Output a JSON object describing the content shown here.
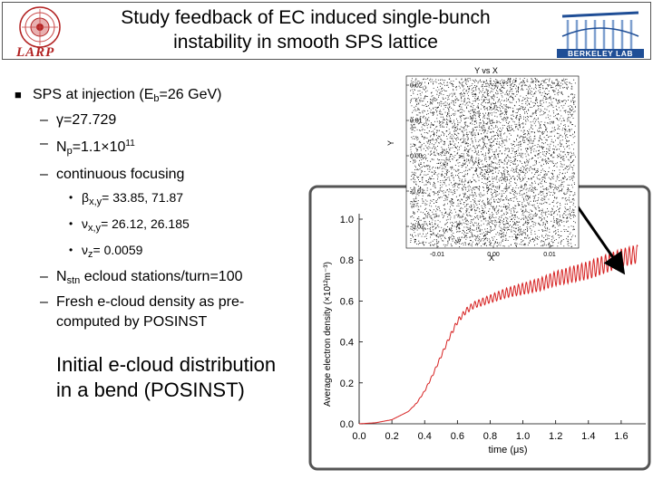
{
  "header": {
    "title_line1": "Study feedback of EC induced single-bunch",
    "title_line2": "instability in smooth SPS lattice",
    "larp_logo_text": "LARP",
    "berkeley_logo_text": "BERKELEY LAB"
  },
  "bullets": {
    "main": {
      "text": "SPS at injection (E",
      "sub": "b",
      "after": "=26 GeV)"
    },
    "gamma": {
      "sym": "γ",
      "text": "=27.729"
    },
    "np": {
      "text": "N",
      "sub": "p",
      "mid": "=1.1",
      "times": "×",
      "base": "10",
      "sup": "11"
    },
    "continuous": "continuous focusing",
    "beta": {
      "sym": "β",
      "sub": "x,y",
      "text": "= 33.85, 71.87"
    },
    "nu": {
      "sym": "ν",
      "sub": "x,y",
      "text": "= 26.12, 26.185"
    },
    "nuz": {
      "sym": "ν",
      "sub": "z",
      "text": "= 0.0059"
    },
    "nstn": {
      "text": "N",
      "sub": "stn",
      "after": " ecloud stations/turn=100"
    },
    "fresh1": "Fresh e-cloud density as pre-",
    "fresh2": "computed by POSINST"
  },
  "caption": {
    "line1": "Initial e-cloud distribution",
    "line2": "in a bend (POSINST)"
  },
  "scatter_plot": {
    "title": "Y vs X",
    "xlabel": "X",
    "ylabel": "Y",
    "xticks": [
      "-0.01",
      "0.00",
      "0.01"
    ],
    "yticks": [
      "0.02",
      "0.01",
      "0.00",
      "-0.01",
      "-0.02"
    ]
  },
  "chart_data": {
    "type": "line",
    "title": "",
    "xlabel": "time (μs)",
    "ylabel": "Average electron density (×10¹²m⁻³)",
    "xlim": [
      0.0,
      1.75
    ],
    "ylim": [
      0.0,
      1.0
    ],
    "xticks": [
      "0.0",
      "0.2",
      "0.4",
      "0.6",
      "0.8",
      "1.0",
      "1.2",
      "1.4",
      "1.6"
    ],
    "yticks": [
      "0.0",
      "0.2",
      "0.4",
      "0.6",
      "0.8",
      "1.0"
    ],
    "series": [
      {
        "name": "density",
        "color": "#d62020",
        "x": [
          0.0,
          0.1,
          0.2,
          0.3,
          0.35,
          0.4,
          0.45,
          0.5,
          0.55,
          0.6,
          0.65,
          0.7,
          0.8,
          0.9,
          1.0,
          1.1,
          1.2,
          1.3,
          1.4,
          1.5,
          1.6,
          1.7
        ],
        "y": [
          0.0,
          0.005,
          0.02,
          0.06,
          0.1,
          0.16,
          0.24,
          0.33,
          0.42,
          0.5,
          0.55,
          0.58,
          0.61,
          0.64,
          0.66,
          0.68,
          0.71,
          0.73,
          0.75,
          0.78,
          0.81,
          0.83
        ]
      }
    ]
  },
  "colors": {
    "curve": "#d62020",
    "larp_red": "#b22222",
    "berkeley_blue": "#1f4e96"
  }
}
